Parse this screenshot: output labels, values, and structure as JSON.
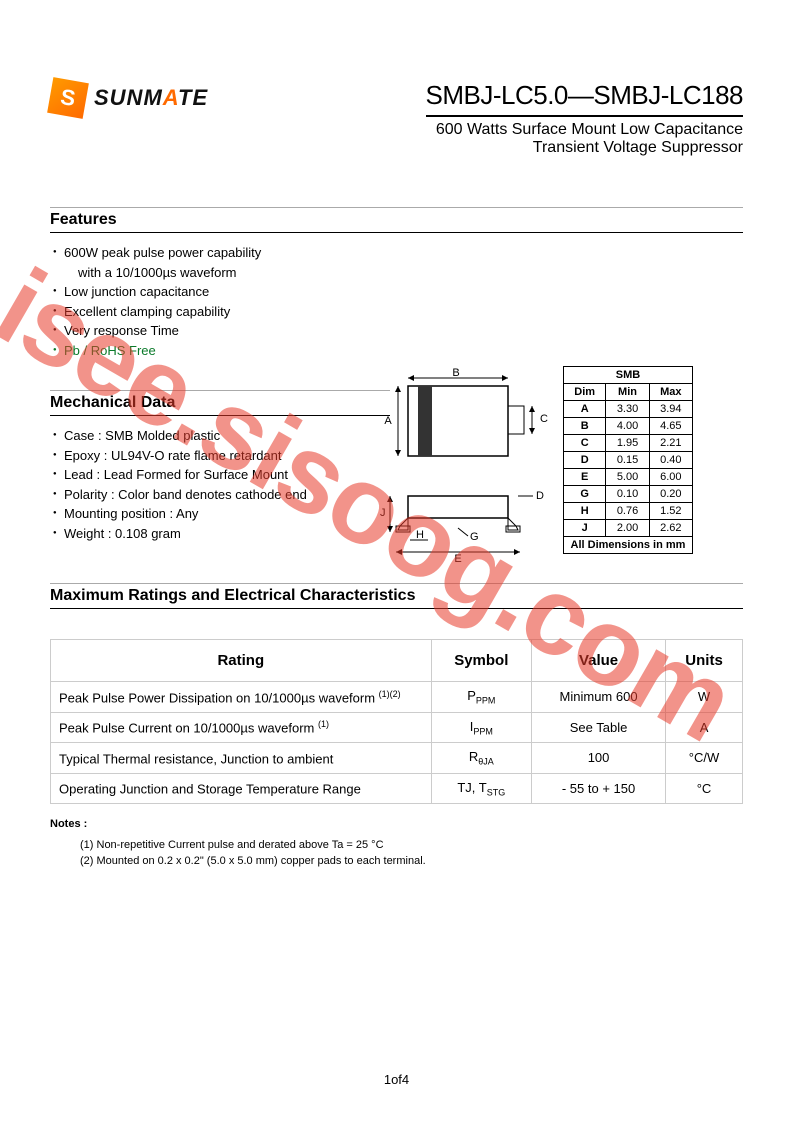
{
  "logo": {
    "badge_letter": "S",
    "text_prefix": "SUNM",
    "text_accent": "A",
    "text_suffix": "TE"
  },
  "title": {
    "part": "SMBJ-LC5.0—SMBJ-LC188",
    "line1": "600 Watts Surface Mount Low Capacitance",
    "line2": "Transient Voltage Suppressor"
  },
  "features": {
    "heading": "Features",
    "items": [
      "600W peak pulse power capability",
      "with a 10/1000µs waveform",
      "Low junction capacitance",
      "Excellent clamping capability",
      "Very response Time",
      "Pb / RoHS Free"
    ]
  },
  "mechanical": {
    "heading": "Mechanical Data",
    "items": [
      "Case : SMB Molded plastic",
      "Epoxy : UL94V-O rate flame retardant",
      "Lead : Lead Formed for Surface Mount",
      "Polarity : Color band denotes cathode end",
      "Mounting position : Any",
      "Weight :  0.108 gram"
    ]
  },
  "dim_table": {
    "title": "SMB",
    "header": {
      "dim": "Dim",
      "min": "Min",
      "max": "Max"
    },
    "rows": [
      {
        "dim": "A",
        "min": "3.30",
        "max": "3.94"
      },
      {
        "dim": "B",
        "min": "4.00",
        "max": "4.65"
      },
      {
        "dim": "C",
        "min": "1.95",
        "max": "2.21"
      },
      {
        "dim": "D",
        "min": "0.15",
        "max": "0.40"
      },
      {
        "dim": "E",
        "min": "5.00",
        "max": "6.00"
      },
      {
        "dim": "G",
        "min": "0.10",
        "max": "0.20"
      },
      {
        "dim": "H",
        "min": "0.76",
        "max": "1.52"
      },
      {
        "dim": "J",
        "min": "2.00",
        "max": "2.62"
      }
    ],
    "footer": "All Dimensions in mm"
  },
  "diagram_labels": {
    "a": "A",
    "b": "B",
    "c": "C",
    "d": "D",
    "e": "E",
    "g": "G",
    "h": "H",
    "j": "J"
  },
  "ratings": {
    "heading": "Maximum Ratings and Electrical Characteristics",
    "cols": {
      "rating": "Rating",
      "symbol": "Symbol",
      "value": "Value",
      "units": "Units"
    },
    "rows": [
      {
        "rating": "Peak Pulse Power Dissipation on 10/1000µs waveform",
        "rating_sup": "(1)(2)",
        "sym": "P",
        "sym_sub": "PPM",
        "value": "Minimum 600",
        "units": "W"
      },
      {
        "rating": "Peak Pulse Current on 10/1000µs waveform",
        "rating_sup": "(1)",
        "sym": "I",
        "sym_sub": "PPM",
        "value": "See Table",
        "units": "A"
      },
      {
        "rating": "Typical Thermal resistance, Junction to ambient",
        "rating_sup": "",
        "sym": "R",
        "sym_sub": "θJA",
        "value": "100",
        "units": "°C/W"
      },
      {
        "rating": "Operating Junction and Storage Temperature Range",
        "rating_sup": "",
        "sym": "TJ, T",
        "sym_sub": "STG",
        "value": "- 55 to + 150",
        "units": "°C"
      }
    ]
  },
  "notes": {
    "heading": "Notes :",
    "items": [
      "(1) Non-repetitive Current pulse and derated above Ta = 25 °C",
      "(2) Mounted on 0.2 x 0.2\" (5.0 x 5.0 mm) copper pads to each terminal."
    ]
  },
  "page": "1of4",
  "watermark": "isee.sisoog.com",
  "colors": {
    "accent": "#ff6a00",
    "green": "#0a7a2a",
    "watermark": "rgba(232,59,42,0.55)"
  }
}
